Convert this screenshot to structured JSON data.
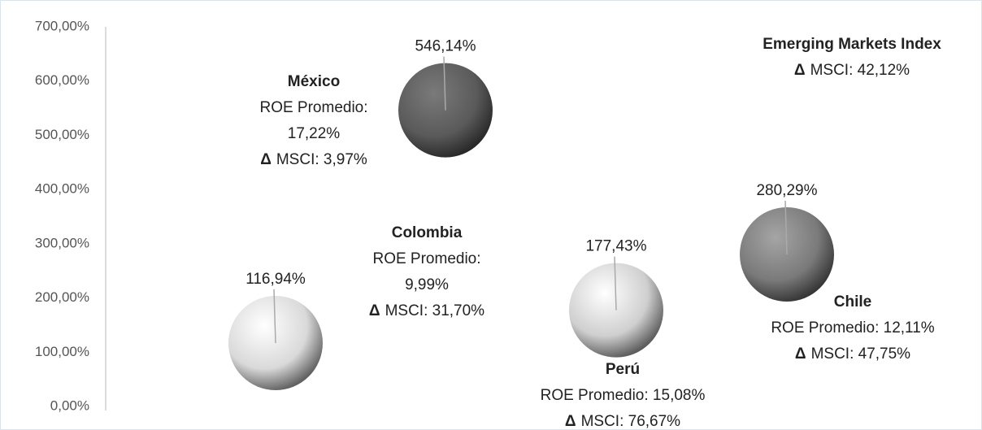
{
  "chart_data": {
    "type": "bubble",
    "ylim": [
      0,
      700
    ],
    "yticks": [
      {
        "value": 0,
        "label": "0,00%"
      },
      {
        "value": 100,
        "label": "100,00%"
      },
      {
        "value": 200,
        "label": "200,00%"
      },
      {
        "value": 300,
        "label": "300,00%"
      },
      {
        "value": 400,
        "label": "400,00%"
      },
      {
        "value": 500,
        "label": "500,00%"
      },
      {
        "value": 600,
        "label": "600,00%"
      },
      {
        "value": 700,
        "label": "700,00%"
      }
    ],
    "categories": [
      "Colombia",
      "México",
      "Perú",
      "Chile"
    ],
    "values": [
      116.94,
      546.14,
      177.43,
      280.29
    ],
    "value_labels": [
      "116,94%",
      "546,14%",
      "177,43%",
      "280,29%"
    ],
    "colors": [
      "#d9d9d9",
      "#5a5a5a",
      "#cfcfcf",
      "#7a7a7a"
    ],
    "delta_symbol": "Δ",
    "annotations": [
      {
        "lines": [
          "ROE Promedio:",
          "9,99%"
        ],
        "msci": "MSCI: 31,70%"
      },
      {
        "lines": [
          "ROE Promedio:",
          "17,22%"
        ],
        "msci": "MSCI: 3,97%"
      },
      {
        "lines": [
          "ROE Promedio: 15,08%"
        ],
        "msci": "MSCI: 76,67%"
      },
      {
        "lines": [
          "ROE Promedio: 12,11%"
        ],
        "msci": "MSCI: 47,75%"
      }
    ],
    "benchmark": {
      "title": "Emerging Markets Index",
      "msci": "MSCI: 42,12%"
    }
  }
}
